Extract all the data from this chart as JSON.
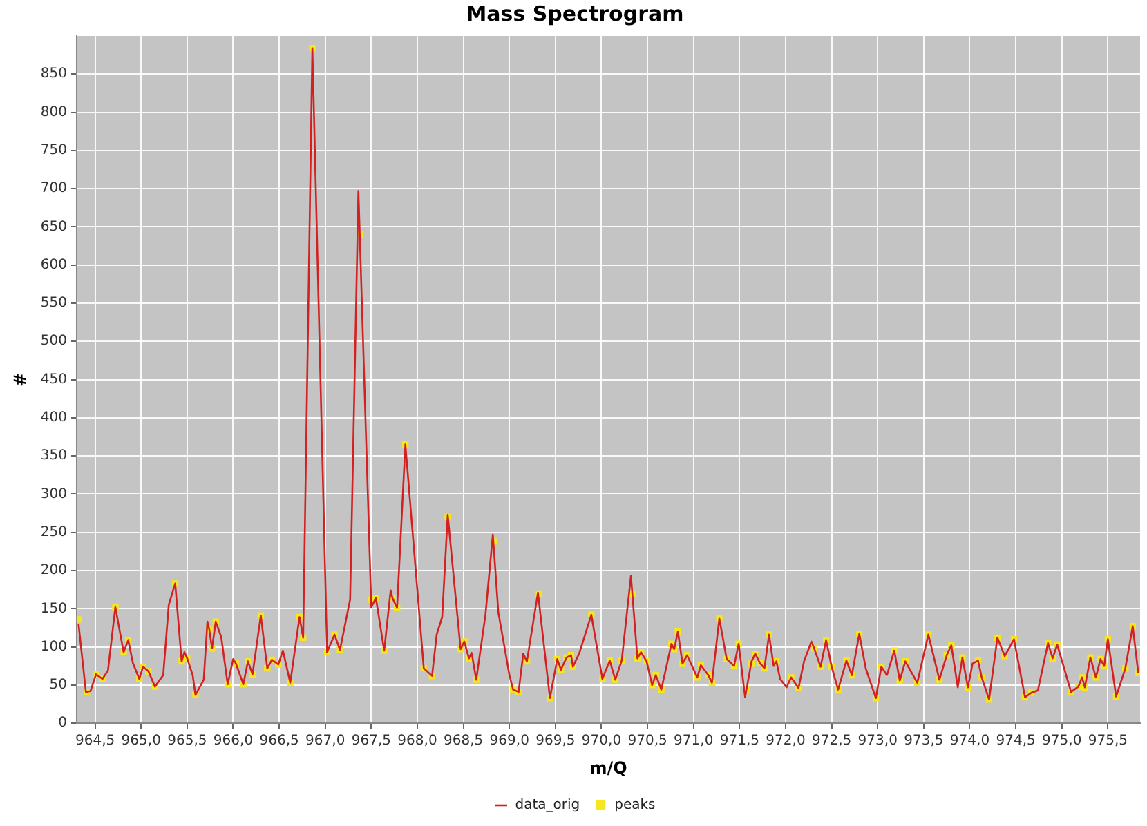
{
  "chart_data": {
    "type": "line",
    "title": "Mass Spectrogram",
    "xlabel": "m/Q",
    "ylabel": "#",
    "xlim": [
      964.3,
      975.85
    ],
    "ylim": [
      0,
      900
    ],
    "xticks": [
      {
        "value": 964.5,
        "label": "964,5"
      },
      {
        "value": 965,
        "label": "965,0"
      },
      {
        "value": 965.5,
        "label": "965,5"
      },
      {
        "value": 966,
        "label": "966,0"
      },
      {
        "value": 966.5,
        "label": "966,5"
      },
      {
        "value": 967,
        "label": "967,0"
      },
      {
        "value": 967.5,
        "label": "967,5"
      },
      {
        "value": 968,
        "label": "968,0"
      },
      {
        "value": 968.5,
        "label": "968,5"
      },
      {
        "value": 969,
        "label": "969,0"
      },
      {
        "value": 969.5,
        "label": "969,5"
      },
      {
        "value": 970,
        "label": "970,0"
      },
      {
        "value": 970.5,
        "label": "970,5"
      },
      {
        "value": 971,
        "label": "971,0"
      },
      {
        "value": 971.5,
        "label": "971,5"
      },
      {
        "value": 972,
        "label": "972,0"
      },
      {
        "value": 972.5,
        "label": "972,5"
      },
      {
        "value": 973,
        "label": "973,0"
      },
      {
        "value": 973.5,
        "label": "973,5"
      },
      {
        "value": 974,
        "label": "974,0"
      },
      {
        "value": 974.5,
        "label": "974,5"
      },
      {
        "value": 975,
        "label": "975,0"
      },
      {
        "value": 975.5,
        "label": "975,5"
      }
    ],
    "yticks": [
      0,
      50,
      100,
      150,
      200,
      250,
      300,
      350,
      400,
      450,
      500,
      550,
      600,
      650,
      700,
      750,
      800,
      850
    ],
    "grid": true,
    "legend": "bottom",
    "series": [
      {
        "name": "data_orig",
        "type": "line",
        "marker": "none",
        "color": "#d42020",
        "x": [
          964.32,
          964.4,
          964.45,
          964.51,
          964.58,
          964.64,
          964.72,
          964.81,
          964.86,
          964.91,
          964.98,
          965.02,
          965.08,
          965.15,
          965.24,
          965.3,
          965.37,
          965.44,
          965.47,
          965.5,
          965.56,
          965.59,
          965.68,
          965.72,
          965.74,
          965.77,
          965.81,
          965.87,
          965.94,
          966.0,
          966.03,
          966.11,
          966.16,
          966.21,
          966.3,
          966.37,
          966.42,
          966.49,
          966.54,
          966.62,
          966.72,
          966.76,
          966.86,
          967.02,
          967.1,
          967.16,
          967.27,
          967.36,
          967.5,
          967.55,
          967.64,
          967.71,
          967.73,
          967.78,
          967.87,
          968.07,
          968.16,
          968.21,
          968.27,
          968.33,
          968.47,
          968.51,
          968.56,
          968.59,
          968.64,
          968.74,
          968.82,
          968.88,
          969.0,
          969.04,
          969.1,
          969.15,
          969.19,
          969.31,
          969.44,
          969.52,
          969.56,
          969.62,
          969.67,
          969.69,
          969.76,
          969.89,
          970.01,
          970.09,
          970.15,
          970.22,
          970.32,
          970.39,
          970.43,
          970.49,
          970.55,
          970.59,
          970.65,
          970.76,
          970.79,
          970.83,
          970.88,
          970.93,
          971.04,
          971.08,
          971.16,
          971.2,
          971.28,
          971.36,
          971.44,
          971.49,
          971.56,
          971.63,
          971.67,
          971.72,
          971.77,
          971.82,
          971.87,
          971.9,
          971.94,
          972.01,
          972.06,
          972.14,
          972.2,
          972.28,
          972.31,
          972.38,
          972.44,
          972.5,
          972.57,
          972.66,
          972.72,
          972.8,
          972.87,
          972.98,
          973.04,
          973.1,
          973.18,
          973.24,
          973.3,
          973.43,
          973.55,
          973.67,
          973.75,
          973.8,
          973.87,
          973.92,
          973.98,
          974.03,
          974.09,
          974.13,
          974.21,
          974.3,
          974.38,
          974.48,
          974.6,
          974.67,
          974.74,
          974.85,
          974.9,
          974.95,
          975.1,
          975.18,
          975.22,
          975.25,
          975.31,
          975.37,
          975.42,
          975.46,
          975.5,
          975.59,
          975.69,
          975.77,
          975.83
        ],
        "values": [
          130,
          41,
          42,
          64,
          58,
          69,
          152,
          93,
          109,
          79,
          58,
          74,
          68,
          48,
          63,
          155,
          183,
          81,
          93,
          85,
          63,
          37,
          57,
          133,
          123,
          98,
          133,
          113,
          51,
          84,
          78,
          51,
          81,
          64,
          141,
          72,
          83,
          77,
          95,
          53,
          139,
          112,
          884,
          93,
          116,
          96,
          162,
          697,
          152,
          164,
          95,
          174,
          164,
          151,
          365,
          72,
          62,
          116,
          139,
          273,
          97,
          107,
          85,
          92,
          57,
          142,
          247,
          145,
          63,
          44,
          41,
          91,
          81,
          171,
          33,
          84,
          70,
          86,
          89,
          74,
          92,
          142,
          58,
          82,
          57,
          82,
          193,
          85,
          93,
          81,
          50,
          63,
          44,
          104,
          97,
          120,
          78,
          89,
          60,
          76,
          63,
          53,
          137,
          84,
          75,
          104,
          34,
          81,
          91,
          79,
          72,
          116,
          75,
          81,
          58,
          47,
          60,
          46,
          81,
          107,
          98,
          74,
          109,
          74,
          44,
          82,
          63,
          117,
          72,
          33,
          74,
          63,
          95,
          56,
          81,
          53,
          116,
          57,
          89,
          102,
          47,
          86,
          47,
          78,
          82,
          60,
          31,
          112,
          88,
          110,
          34,
          40,
          43,
          105,
          85,
          103,
          41,
          48,
          60,
          47,
          86,
          60,
          84,
          75,
          110,
          35,
          72,
          127,
          66
        ]
      },
      {
        "name": "peaks",
        "type": "scatter",
        "marker": "square",
        "color": "#f5e61e",
        "x": [
          964.32,
          964.41,
          964.51,
          964.58,
          964.72,
          964.81,
          964.86,
          964.98,
          965.02,
          965.08,
          965.15,
          965.37,
          965.44,
          965.5,
          965.59,
          965.74,
          965.77,
          965.81,
          965.94,
          966.03,
          966.11,
          966.16,
          966.21,
          966.3,
          966.37,
          966.42,
          966.49,
          966.62,
          966.72,
          966.76,
          966.86,
          967.02,
          967.1,
          967.16,
          967.38,
          967.5,
          967.55,
          967.64,
          967.73,
          967.78,
          967.87,
          968.07,
          968.16,
          968.33,
          968.47,
          968.51,
          968.56,
          968.64,
          968.83,
          969.04,
          969.1,
          969.19,
          969.32,
          969.44,
          969.52,
          969.56,
          969.62,
          969.67,
          969.69,
          969.89,
          970.01,
          970.09,
          970.15,
          970.22,
          970.34,
          970.39,
          970.43,
          970.49,
          970.55,
          970.59,
          970.65,
          970.76,
          970.79,
          970.83,
          970.88,
          970.93,
          971.04,
          971.08,
          971.16,
          971.2,
          971.28,
          971.36,
          971.44,
          971.49,
          971.57,
          971.63,
          971.67,
          971.72,
          971.77,
          971.82,
          971.9,
          972.06,
          972.14,
          972.31,
          972.38,
          972.44,
          972.5,
          972.57,
          972.66,
          972.72,
          972.8,
          972.98,
          973.04,
          973.18,
          973.24,
          973.3,
          973.43,
          973.55,
          973.67,
          973.75,
          973.8,
          973.92,
          973.98,
          974.09,
          974.13,
          974.21,
          974.3,
          974.38,
          974.48,
          974.6,
          974.67,
          974.85,
          974.9,
          974.95,
          975.1,
          975.18,
          975.22,
          975.25,
          975.31,
          975.37,
          975.42,
          975.46,
          975.5,
          975.59,
          975.69,
          975.77,
          975.83
        ],
        "values": [
          136,
          41,
          64,
          58,
          152,
          93,
          109,
          58,
          74,
          68,
          48,
          183,
          81,
          85,
          37,
          123,
          98,
          133,
          51,
          78,
          51,
          81,
          64,
          141,
          72,
          83,
          77,
          53,
          139,
          112,
          884,
          93,
          116,
          96,
          640,
          162,
          164,
          95,
          164,
          151,
          365,
          72,
          62,
          270,
          97,
          107,
          85,
          57,
          238,
          44,
          41,
          81,
          169,
          33,
          84,
          70,
          86,
          89,
          74,
          142,
          58,
          82,
          57,
          82,
          169,
          85,
          93,
          81,
          50,
          63,
          44,
          104,
          97,
          120,
          78,
          89,
          60,
          76,
          63,
          53,
          137,
          84,
          75,
          104,
          44,
          78,
          91,
          79,
          72,
          116,
          81,
          60,
          46,
          98,
          74,
          109,
          74,
          44,
          82,
          63,
          117,
          33,
          74,
          95,
          56,
          81,
          53,
          116,
          57,
          89,
          102,
          86,
          47,
          82,
          60,
          31,
          112,
          88,
          110,
          34,
          40,
          105,
          85,
          103,
          41,
          48,
          60,
          47,
          86,
          60,
          84,
          75,
          110,
          35,
          72,
          127,
          66
        ]
      }
    ]
  }
}
